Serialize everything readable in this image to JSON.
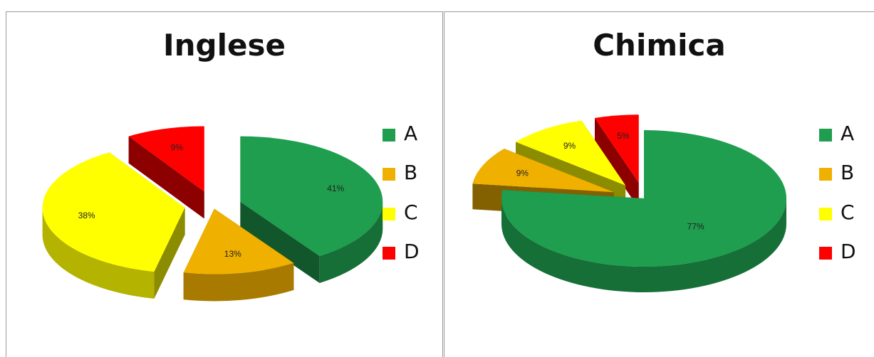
{
  "colors": {
    "A": "#1e9e4e",
    "B": "#f0b000",
    "C": "#ffff00",
    "D": "#ff0000"
  },
  "chart_data": [
    {
      "type": "pie",
      "title": "Inglese",
      "categories": [
        "A",
        "B",
        "C",
        "D"
      ],
      "values": [
        41,
        13,
        38,
        9
      ],
      "labels": [
        "41%",
        "13%",
        "38%",
        "9%"
      ],
      "style": "3d-exploded",
      "legend": "right"
    },
    {
      "type": "pie",
      "title": "Chimica",
      "categories": [
        "A",
        "B",
        "C",
        "D"
      ],
      "values": [
        77,
        9,
        9,
        5
      ],
      "labels": [
        "77%",
        "9%",
        "9%",
        "5%"
      ],
      "style": "3d-exploded",
      "legend": "right"
    }
  ]
}
